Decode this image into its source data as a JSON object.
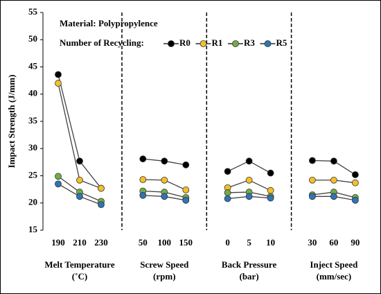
{
  "chart_data": {
    "type": "line",
    "ylabel": "Impact Strength (J/mm)",
    "annotations": [
      "Material: Polypropylence",
      "Number of Recycling:"
    ],
    "ylim": [
      15,
      55
    ],
    "yticks": [
      15,
      20,
      25,
      30,
      35,
      40,
      45,
      50,
      55
    ],
    "panels": [
      {
        "xlabel": [
          "Melt Temperature",
          "(˚C)"
        ],
        "categories": [
          "190",
          "210",
          "230"
        ]
      },
      {
        "xlabel": [
          "Screw Speed",
          "(rpm)"
        ],
        "categories": [
          "50",
          "100",
          "150"
        ]
      },
      {
        "xlabel": [
          "Back Pressure",
          "(bar)"
        ],
        "categories": [
          "0",
          "5",
          "10"
        ]
      },
      {
        "xlabel": [
          "Inject Speed",
          "(mm/sec)"
        ],
        "categories": [
          "30",
          "60",
          "90"
        ]
      }
    ],
    "series": [
      {
        "name": "R0",
        "color": "#000000",
        "values": [
          [
            43.6,
            27.7,
            22.7
          ],
          [
            28.1,
            27.7,
            27.0
          ],
          [
            25.8,
            27.7,
            25.5
          ],
          [
            27.8,
            27.7,
            25.2
          ]
        ]
      },
      {
        "name": "R1",
        "color": "#f5bf2a",
        "values": [
          [
            42.0,
            24.2,
            22.7
          ],
          [
            24.3,
            24.2,
            22.4
          ],
          [
            22.8,
            24.2,
            22.3
          ],
          [
            24.2,
            24.2,
            23.7
          ]
        ]
      },
      {
        "name": "R3",
        "color": "#70ad47",
        "values": [
          [
            24.9,
            22.0,
            20.3
          ],
          [
            22.2,
            22.0,
            21.0
          ],
          [
            21.9,
            22.0,
            21.2
          ],
          [
            21.5,
            22.0,
            21.0
          ]
        ]
      },
      {
        "name": "R5",
        "color": "#2e75b6",
        "values": [
          [
            23.5,
            21.2,
            19.7
          ],
          [
            21.4,
            21.2,
            20.5
          ],
          [
            20.8,
            21.2,
            20.9
          ],
          [
            21.2,
            21.2,
            20.5
          ]
        ]
      }
    ]
  }
}
